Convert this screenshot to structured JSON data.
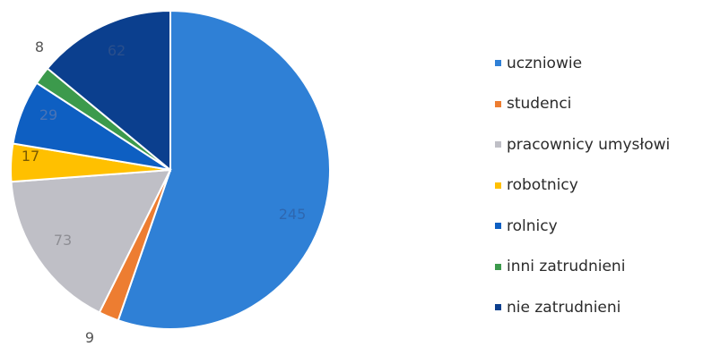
{
  "chart_data": {
    "type": "pie",
    "title": "",
    "start_angle_deg": 0,
    "direction": "clockwise",
    "legend_position": "right",
    "slices": [
      {
        "label": "uczniowie",
        "value": 245,
        "data_label": "245",
        "color": "#2F80D6"
      },
      {
        "label": "studenci",
        "value": 9,
        "data_label": "9",
        "color": "#ED7D31"
      },
      {
        "label": "pracownicy umysłowi",
        "value": 73,
        "data_label": "73",
        "color": "#BFBFC6"
      },
      {
        "label": "robotnicy",
        "value": 17,
        "data_label": "17",
        "color": "#FFC000"
      },
      {
        "label": "rolnicy",
        "value": 29,
        "data_label": "29",
        "color": "#0E5FC2"
      },
      {
        "label": "inni zatrudnieni",
        "value": 8,
        "data_label": "8",
        "color": "#3C9A4C"
      },
      {
        "label": "nie zatrudnieni",
        "value": 62,
        "data_label": "62",
        "color": "#0B3F8E"
      }
    ]
  }
}
